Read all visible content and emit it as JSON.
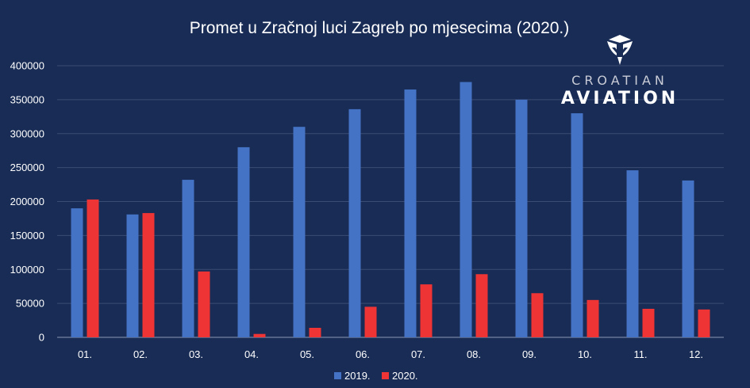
{
  "chart_data": {
    "type": "bar",
    "title": "Promet u Zračnoj luci Zagreb po mjesecima (2020.)",
    "xlabel": "",
    "ylabel": "",
    "categories": [
      "01.",
      "02.",
      "03.",
      "04.",
      "05.",
      "06.",
      "07.",
      "08.",
      "09.",
      "10.",
      "11.",
      "12."
    ],
    "series": [
      {
        "name": "2019.",
        "color": "#4472c4",
        "values": [
          190000,
          181000,
          232000,
          280000,
          310000,
          336000,
          365000,
          376000,
          350000,
          330000,
          246000,
          231000
        ]
      },
      {
        "name": "2020.",
        "color": "#ee3434",
        "values": [
          203000,
          183000,
          97000,
          5000,
          14000,
          45000,
          78000,
          93000,
          65000,
          55000,
          42000,
          41000
        ]
      }
    ],
    "ylim": [
      0,
      400000
    ],
    "yticks": [
      0,
      50000,
      100000,
      150000,
      200000,
      250000,
      300000,
      350000,
      400000
    ],
    "grid": true,
    "legend_position": "bottom"
  },
  "logo": {
    "top_text": "CROATIAN",
    "bottom_text": "AVIATION",
    "icon": "shield-wings-icon"
  },
  "colors": {
    "background": "#182c55",
    "gridline": "#3b4d73"
  }
}
